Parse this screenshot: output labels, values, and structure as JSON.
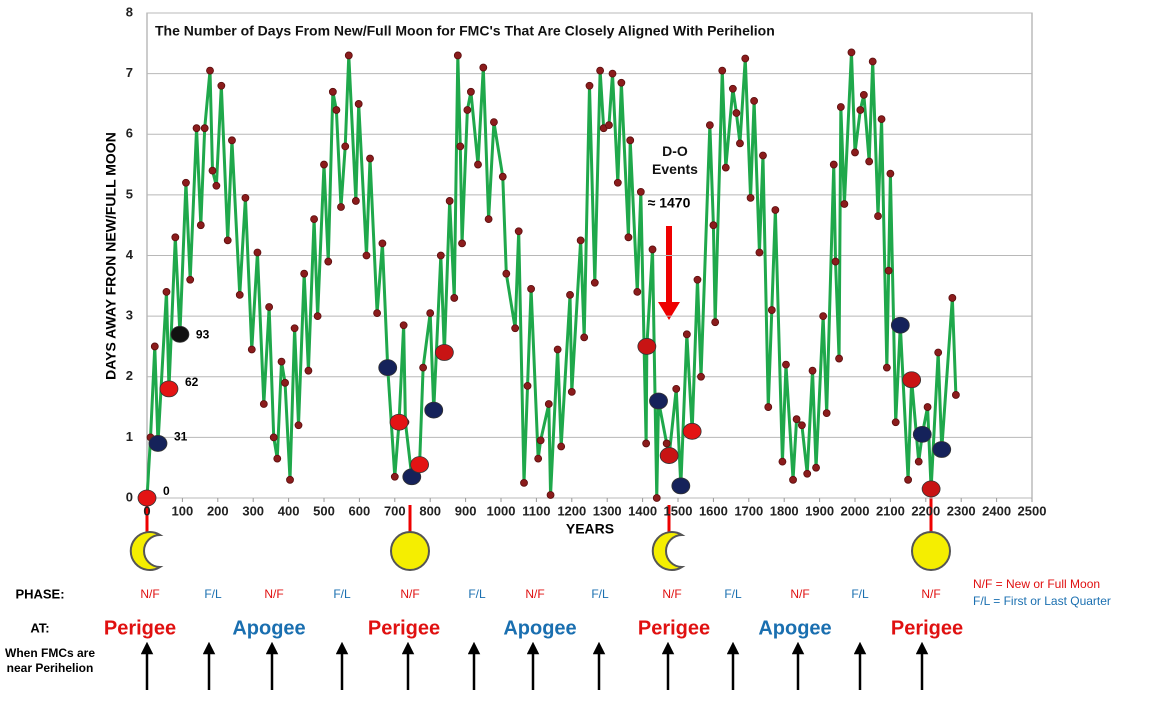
{
  "chart_data": {
    "type": "line",
    "title": "The Number of Days From New/Full Moon for FMC's That Are Closely Aligned With Perihelion",
    "y_label": "DAYS AWAY FRON NEW/FULL MOON",
    "x_label": "YEARS",
    "xlim": [
      0,
      2500
    ],
    "xticks": [
      0,
      100,
      200,
      300,
      400,
      500,
      600,
      700,
      800,
      900,
      1000,
      1100,
      1200,
      1300,
      1400,
      1500,
      1600,
      1700,
      1800,
      1900,
      2000,
      2100,
      2200,
      2300,
      2400,
      2500
    ],
    "ylim": [
      0,
      8
    ],
    "yticks": [
      0,
      1,
      2,
      3,
      4,
      5,
      6,
      7,
      8
    ],
    "grid": true,
    "series": [
      {
        "color": "#1fa84b",
        "marker_color": "#8b1c1c",
        "x": [
          0,
          10,
          22,
          31,
          55,
          62,
          80,
          93,
          110,
          122,
          140,
          152,
          163,
          178,
          185,
          196,
          210,
          228,
          240,
          262,
          278,
          296,
          312,
          330,
          345,
          358,
          368,
          380,
          390,
          404,
          417,
          428,
          444,
          456,
          472,
          482,
          500,
          512,
          525,
          535,
          548,
          560,
          570,
          590,
          598,
          620,
          630,
          650,
          665,
          680,
          700,
          712,
          725,
          730,
          748,
          770,
          780,
          800,
          810,
          830,
          840,
          855,
          868,
          878,
          885,
          890,
          905,
          915,
          935,
          950,
          965,
          980,
          1005,
          1015,
          1040,
          1050,
          1065,
          1075,
          1085,
          1105,
          1112,
          1135,
          1140,
          1160,
          1170,
          1195,
          1200,
          1225,
          1235,
          1250,
          1265,
          1280,
          1290,
          1305,
          1315,
          1330,
          1340,
          1360,
          1365,
          1385,
          1395,
          1410,
          1412,
          1428,
          1440,
          1445,
          1468,
          1475,
          1495,
          1508,
          1525,
          1540,
          1555,
          1565,
          1590,
          1600,
          1605,
          1625,
          1635,
          1655,
          1665,
          1675,
          1690,
          1705,
          1715,
          1730,
          1740,
          1755,
          1765,
          1775,
          1795,
          1805,
          1825,
          1835,
          1850,
          1865,
          1880,
          1890,
          1910,
          1920,
          1940,
          1945,
          1955,
          1960,
          1970,
          1990,
          2000,
          2015,
          2025,
          2040,
          2050,
          2065,
          2075,
          2090,
          2095,
          2100,
          2115,
          2128,
          2150,
          2160,
          2180,
          2190,
          2205,
          2215,
          2235,
          2245,
          2275,
          2285
        ],
        "values": [
          0,
          1.0,
          2.5,
          0.9,
          3.4,
          1.8,
          4.3,
          2.7,
          5.2,
          3.6,
          6.1,
          4.5,
          6.1,
          7.05,
          5.4,
          5.15,
          6.8,
          4.25,
          5.9,
          3.35,
          4.95,
          2.45,
          4.05,
          1.55,
          3.15,
          1.0,
          0.65,
          2.25,
          1.9,
          0.3,
          2.8,
          1.2,
          3.7,
          2.1,
          4.6,
          3.0,
          5.5,
          3.9,
          6.7,
          6.4,
          4.8,
          5.8,
          7.3,
          4.9,
          6.5,
          4.0,
          5.6,
          3.05,
          4.2,
          2.15,
          0.35,
          1.25,
          2.85,
          1.25,
          0.35,
          0.55,
          2.15,
          3.05,
          1.45,
          4.0,
          2.4,
          4.9,
          3.3,
          7.3,
          5.8,
          4.2,
          6.4,
          6.7,
          5.5,
          7.1,
          4.6,
          6.2,
          5.3,
          3.7,
          2.8,
          4.4,
          0.25,
          1.85,
          3.45,
          0.65,
          0.95,
          1.55,
          0.05,
          2.45,
          0.85,
          3.35,
          1.75,
          4.25,
          2.65,
          6.8,
          3.55,
          7.05,
          6.1,
          6.15,
          7.0,
          5.2,
          6.85,
          4.3,
          5.9,
          3.4,
          5.05,
          0.9,
          2.5,
          4.1,
          0.0,
          1.6,
          0.9,
          0.7,
          1.8,
          0.2,
          2.7,
          1.1,
          3.6,
          2.0,
          6.15,
          4.5,
          2.9,
          7.05,
          5.45,
          6.75,
          6.35,
          5.85,
          7.25,
          4.95,
          6.55,
          4.05,
          5.65,
          1.5,
          3.1,
          4.75,
          0.6,
          2.2,
          0.3,
          1.3,
          1.2,
          0.4,
          2.1,
          0.5,
          3.0,
          1.4,
          5.5,
          3.9,
          2.3,
          6.45,
          4.85,
          7.35,
          5.7,
          6.4,
          6.65,
          5.55,
          7.2,
          4.65,
          6.25,
          2.15,
          3.75,
          5.35,
          1.25,
          2.85,
          0.3,
          1.95,
          0.6,
          1.05,
          1.5,
          0.15,
          2.4,
          0.8,
          3.3,
          1.7
        ]
      }
    ],
    "labeled_points": {
      "x": [
        0,
        31,
        62,
        93
      ],
      "values": [
        0,
        0.9,
        1.8,
        2.7
      ],
      "colors": [
        "#e31414",
        "#15225a",
        "#e31414",
        "#111111"
      ]
    },
    "other_points": {
      "x": [
        680,
        712,
        748,
        770,
        810,
        840,
        1412,
        1445,
        1475,
        1508,
        1540,
        2128,
        2160,
        2190,
        2215,
        2245
      ],
      "values": [
        2.15,
        1.25,
        0.35,
        0.55,
        1.45,
        2.4,
        2.5,
        1.6,
        0.7,
        0.2,
        1.1,
        2.85,
        1.95,
        1.05,
        0.15,
        0.8
      ],
      "colors": [
        "#15225a",
        "#e31414",
        "#15225a",
        "#e31414",
        "#15225a",
        "#c81414",
        "#c81414",
        "#15225a",
        "#c81414",
        "#15225a",
        "#e31414",
        "#15225a",
        "#c81414",
        "#15225a",
        "#c81414",
        "#15225a"
      ]
    },
    "annotations": [
      "D-O Events",
      "≈ 1470"
    ],
    "phase_label": "PHASE:",
    "phases": [
      "N/F",
      "F/L",
      "N/F",
      "F/L",
      "N/F",
      "F/L",
      "N/F",
      "F/L",
      "N/F",
      "F/L",
      "N/F",
      "F/L",
      "N/F"
    ],
    "at_label": "AT:",
    "positions": [
      "Perigee",
      "Apogee",
      "Perigee",
      "Apogee",
      "Perigee",
      "Apogee",
      "Perigee"
    ],
    "arrow_label": "When FMCs are near Perihelion",
    "legend": [
      "N/F = New or Full Moon",
      "F/L = First or Last Quarter"
    ]
  }
}
